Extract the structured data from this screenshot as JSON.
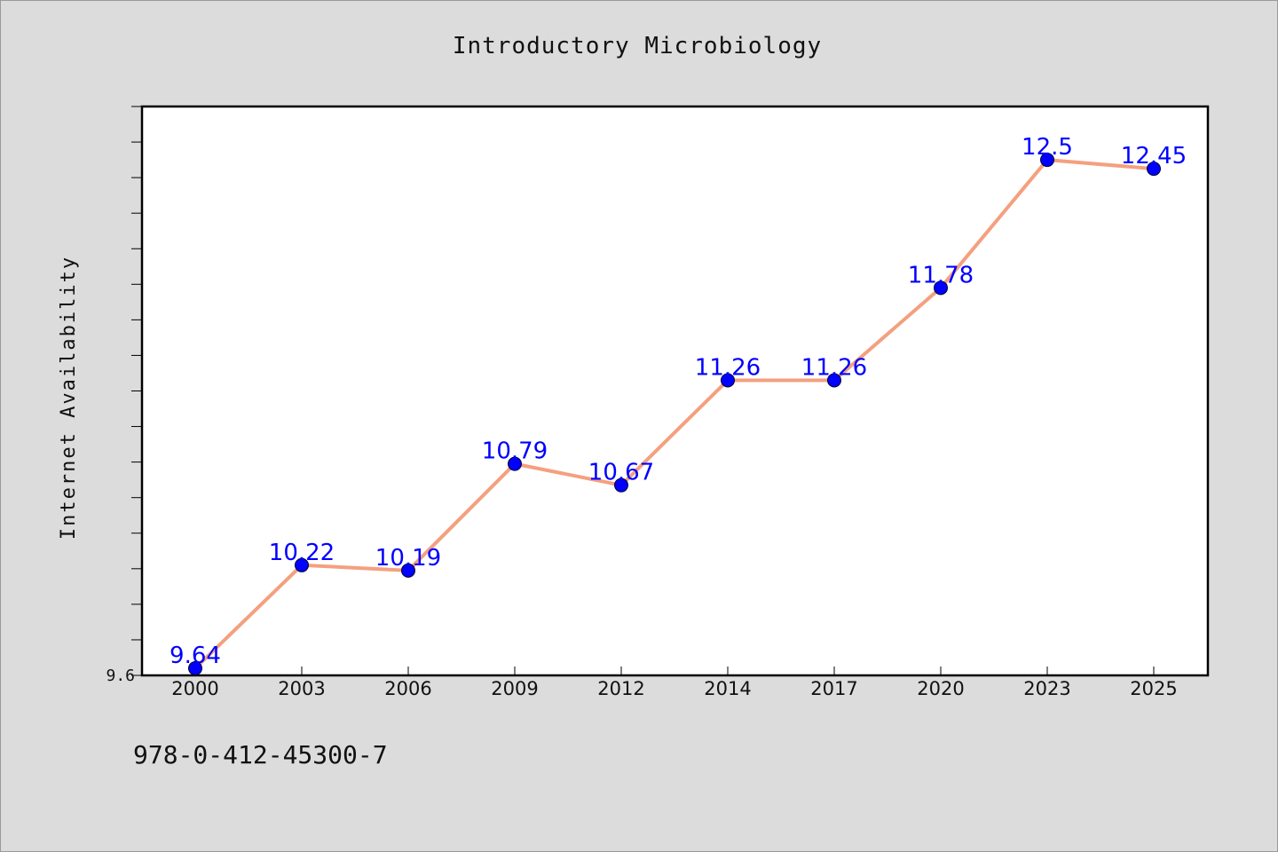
{
  "chart_data": {
    "type": "line",
    "title": "Introductory Microbiology",
    "xlabel": "",
    "ylabel": "Internet Availability",
    "categories": [
      "2000",
      "2003",
      "2006",
      "2009",
      "2012",
      "2014",
      "2017",
      "2020",
      "2023",
      "2025"
    ],
    "values": [
      9.64,
      10.22,
      10.19,
      10.79,
      10.67,
      11.26,
      11.26,
      11.78,
      12.5,
      12.45
    ],
    "data_labels": [
      "9.64",
      "10.22",
      "10.19",
      "10.79",
      "10.67",
      "11.26",
      "11.26",
      "11.78",
      "12.5",
      "12.45"
    ],
    "ylim": [
      9.6,
      12.8
    ],
    "y_tick_labels": [
      "9.6"
    ],
    "line_color": "#f4a07f",
    "marker_color": "#0000ff",
    "label_color": "#0000ff",
    "grid": false
  },
  "footnote": "978-0-412-45300-7"
}
